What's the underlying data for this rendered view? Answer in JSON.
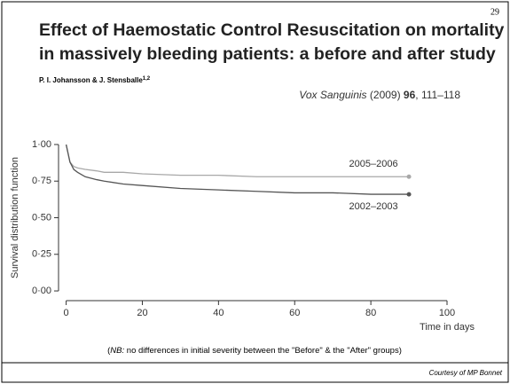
{
  "page_number": "29",
  "title_line1": "Effect of Haemostatic Control Resuscitation on mortality",
  "title_line2": "in massively bleeding patients: a before and after study",
  "authors": "P. I. Johansson & J. Stensballe",
  "authors_sup": "1,2",
  "citation": {
    "journal": "Vox Sanguinis",
    "year": " (2009) ",
    "volume": "96",
    "pages": ", 111–118"
  },
  "note": {
    "prefix": "NB:",
    "text": " no differences in initial severity between the \"Before\" & the \"After\" groups)",
    "open": "("
  },
  "courtesy": "Courtesy of MP Bonnet",
  "chart_data": {
    "type": "line",
    "x_label": "Time in days",
    "y_label": "Survival distribution function",
    "x": [
      0,
      1,
      2,
      3,
      5,
      8,
      10,
      15,
      20,
      30,
      40,
      50,
      60,
      70,
      80,
      90
    ],
    "series": [
      {
        "name": "2005–2006",
        "color": "#a8a8a8",
        "values": [
          1.0,
          0.88,
          0.85,
          0.84,
          0.83,
          0.82,
          0.81,
          0.81,
          0.8,
          0.79,
          0.79,
          0.78,
          0.78,
          0.78,
          0.78,
          0.78
        ]
      },
      {
        "name": "2002–2003",
        "color": "#555555",
        "values": [
          1.0,
          0.88,
          0.83,
          0.81,
          0.78,
          0.76,
          0.75,
          0.73,
          0.72,
          0.7,
          0.69,
          0.68,
          0.67,
          0.67,
          0.66,
          0.66
        ]
      }
    ],
    "xlim": [
      -2,
      100
    ],
    "xticks": [
      0,
      20,
      40,
      60,
      80,
      100
    ],
    "ylim": [
      -0.03,
      1.03
    ],
    "yticks": [
      {
        "value": 0,
        "label": "0·00"
      },
      {
        "value": 0.25,
        "label": "0·25"
      },
      {
        "value": 0.5,
        "label": "0·50"
      },
      {
        "value": 0.75,
        "label": "0·75"
      },
      {
        "value": 1,
        "label": "1·00"
      }
    ]
  }
}
